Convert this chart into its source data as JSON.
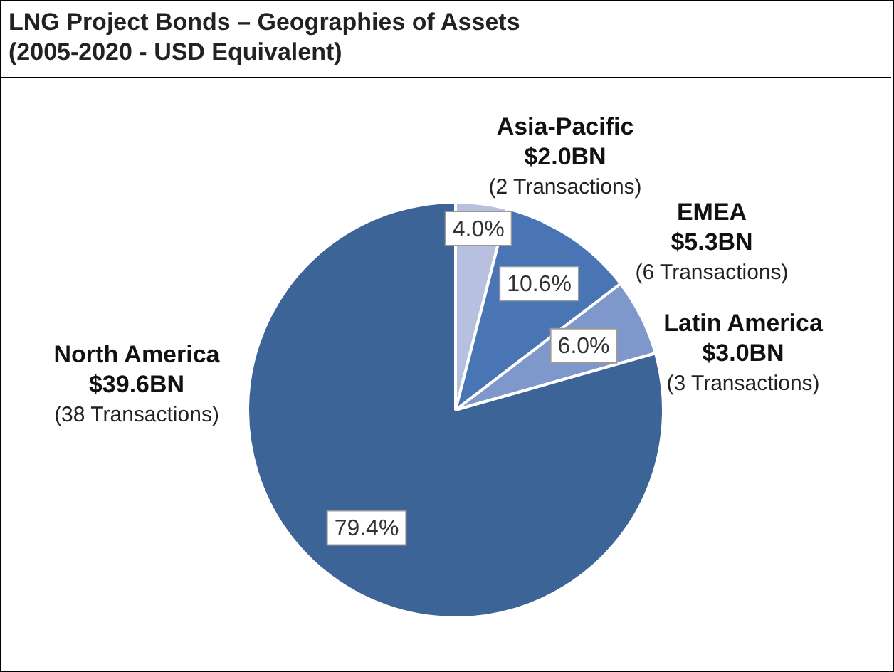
{
  "chart_data": {
    "type": "pie",
    "title": "LNG Project Bonds – Geographies of Assets",
    "subtitle": "(2005-2020 - USD Equivalent)",
    "categories": [
      "Asia-Pacific",
      "EMEA",
      "Latin America",
      "North America"
    ],
    "values": [
      4.0,
      10.6,
      6.0,
      79.4
    ],
    "value_labels": [
      "4.0%",
      "10.6%",
      "6.0%",
      "79.4%"
    ],
    "colors": [
      "#b7c0df",
      "#4a75b5",
      "#7e98cb",
      "#3d6497"
    ],
    "legend": false,
    "annotations": [
      {
        "text": "$2.0BN",
        "x": "Asia-Pacific"
      },
      {
        "text": "(2 Transactions)",
        "x": "Asia-Pacific"
      },
      {
        "text": "$5.3BN",
        "x": "EMEA"
      },
      {
        "text": "(6 Transactions)",
        "x": "EMEA"
      },
      {
        "text": "$3.0BN",
        "x": "Latin America"
      },
      {
        "text": "(3 Transactions)",
        "x": "Latin America"
      },
      {
        "text": "$39.6BN",
        "x": "North America"
      },
      {
        "text": "(38 Transactions)",
        "x": "North America"
      }
    ]
  }
}
